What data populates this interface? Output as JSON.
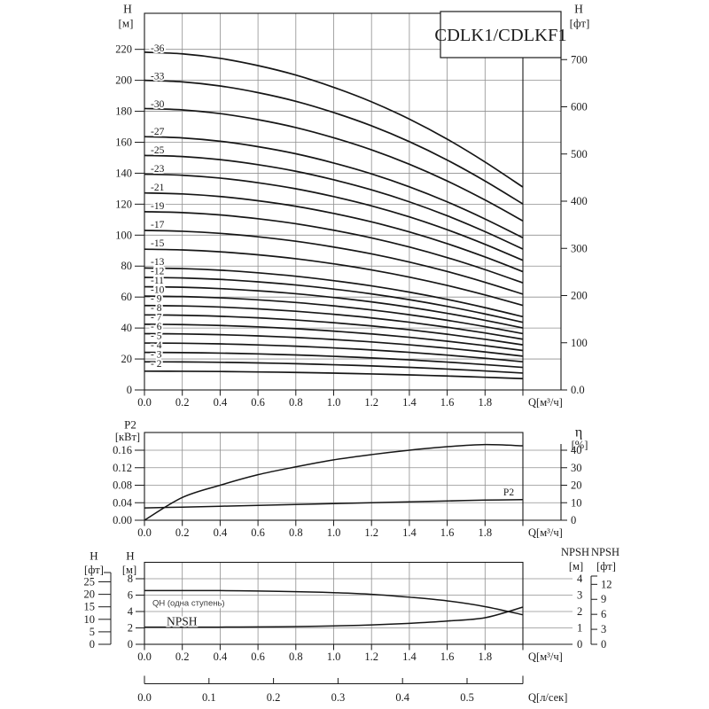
{
  "figure": {
    "title": "CDLK1/CDLKF1",
    "x_tick_labels": [
      "0.0",
      "0.2",
      "0.4",
      "0.6",
      "0.8",
      "1.0",
      "1.2",
      "1.4",
      "1.6",
      "1.8"
    ]
  },
  "chart_data": [
    {
      "id": "head-chart",
      "type": "line",
      "title": "CDLK1/CDLKF1",
      "xlabel": "Q[м³/ч]",
      "x_range": [
        0,
        2.0
      ],
      "x_tick_labels": [
        "0.0",
        "0.2",
        "0.4",
        "0.6",
        "0.8",
        "1.0",
        "1.2",
        "1.4",
        "1.6",
        "1.8"
      ],
      "y_left": {
        "name": "H",
        "unit": "[м]",
        "ticks": [
          0,
          20,
          40,
          60,
          80,
          100,
          120,
          140,
          160,
          180,
          200,
          220
        ],
        "range": [
          0,
          243
        ]
      },
      "y_right": {
        "name": "H",
        "unit": "[фт]",
        "tick_labels": [
          "0.0",
          "100",
          "200",
          "300",
          "400",
          "500",
          "600",
          "700"
        ],
        "tick_values": [
          0,
          100,
          200,
          300,
          400,
          500,
          600,
          700
        ]
      },
      "grid": true,
      "q": [
        0,
        0.2,
        0.4,
        0.6,
        0.8,
        1.0,
        1.2,
        1.4,
        1.6,
        1.8,
        2.0
      ],
      "single_stage_head_m": [
        6.06,
        6.03,
        5.95,
        5.82,
        5.65,
        5.43,
        5.17,
        4.86,
        4.5,
        4.09,
        3.64
      ],
      "series": [
        {
          "label": "-36",
          "stages": 36
        },
        {
          "label": "-33",
          "stages": 33
        },
        {
          "label": "-30",
          "stages": 30
        },
        {
          "label": "-27",
          "stages": 27
        },
        {
          "label": "-25",
          "stages": 25
        },
        {
          "label": "-23",
          "stages": 23
        },
        {
          "label": "-21",
          "stages": 21
        },
        {
          "label": "-19",
          "stages": 19
        },
        {
          "label": "-17",
          "stages": 17
        },
        {
          "label": "-15",
          "stages": 15
        },
        {
          "label": "-13",
          "stages": 13
        },
        {
          "label": "-12",
          "stages": 12
        },
        {
          "label": "-11",
          "stages": 11
        },
        {
          "label": "-10",
          "stages": 10
        },
        {
          "label": "- 9",
          "stages": 9
        },
        {
          "label": "- 8",
          "stages": 8
        },
        {
          "label": "- 7",
          "stages": 7
        },
        {
          "label": "- 6",
          "stages": 6
        },
        {
          "label": "- 5",
          "stages": 5
        },
        {
          "label": "- 4",
          "stages": 4
        },
        {
          "label": "- 3",
          "stages": 3
        },
        {
          "label": "- 2",
          "stages": 2
        }
      ]
    },
    {
      "id": "power-efficiency-chart",
      "type": "line",
      "xlabel": "Q[м³/ч]",
      "x_tick_labels": [
        "0.0",
        "0.2",
        "0.4",
        "0.6",
        "0.8",
        "1.0",
        "1.2",
        "1.4",
        "1.6",
        "1.8"
      ],
      "y_left": {
        "name": "P2",
        "unit": "[кВт]",
        "tick_labels": [
          "0.00",
          "0.04",
          "0.08",
          "0.12",
          "0.16"
        ],
        "range": [
          0,
          0.2
        ]
      },
      "y_right": {
        "name": "η",
        "unit": "[%]",
        "ticks": [
          0,
          10,
          20,
          30,
          40
        ]
      },
      "q": [
        0,
        0.2,
        0.4,
        0.6,
        0.8,
        1.0,
        1.2,
        1.4,
        1.6,
        1.8,
        2.0
      ],
      "series": [
        {
          "name": "eta",
          "label": "",
          "unit": "%",
          "values": [
            0,
            13,
            20,
            26,
            30.5,
            34.5,
            37.5,
            40,
            42,
            43.2,
            42.5
          ]
        },
        {
          "name": "P2",
          "label": "P2",
          "unit": "кВт",
          "values": [
            0.028,
            0.03,
            0.032,
            0.034,
            0.036,
            0.038,
            0.04,
            0.042,
            0.044,
            0.046,
            0.047
          ]
        }
      ]
    },
    {
      "id": "qh-npsh-chart",
      "type": "line",
      "xlabel": "Q[м³/ч]",
      "x_tick_labels": [
        "0.0",
        "0.2",
        "0.4",
        "0.6",
        "0.8",
        "1.0",
        "1.2",
        "1.4",
        "1.6",
        "1.8"
      ],
      "y_left": {
        "name": "H",
        "unit": "[м]",
        "ticks": [
          0,
          2,
          4,
          6,
          8
        ],
        "range": [
          0,
          10
        ]
      },
      "y_outer_left": {
        "name": "H",
        "unit": "[фт]",
        "ticks": [
          0,
          5,
          10,
          15,
          20,
          25
        ]
      },
      "y_right": {
        "name": "NPSH",
        "unit": "[м]",
        "ticks": [
          0,
          1,
          2,
          3,
          4
        ]
      },
      "y_outer_right": {
        "name": "NPSH",
        "unit": "[фт]",
        "ticks": [
          0,
          3,
          6,
          9,
          12
        ]
      },
      "q": [
        0,
        0.2,
        0.4,
        0.6,
        0.8,
        1.0,
        1.2,
        1.4,
        1.6,
        1.8,
        2.0
      ],
      "series": [
        {
          "name": "QH",
          "label": "QH (одна ступень)",
          "unit": "м",
          "values": [
            6.55,
            6.55,
            6.55,
            6.5,
            6.42,
            6.3,
            6.1,
            5.75,
            5.3,
            4.6,
            3.6
          ]
        },
        {
          "name": "NPSH",
          "label": "NPSH",
          "unit": "м",
          "values": [
            1.05,
            1.05,
            1.05,
            1.06,
            1.08,
            1.12,
            1.18,
            1.28,
            1.42,
            1.62,
            2.27
          ]
        }
      ]
    },
    {
      "id": "lps-axis",
      "type": "axis",
      "xlabel": "Q[л/сек]",
      "tick_labels": [
        "0.0",
        "0.1",
        "0.2",
        "0.3",
        "0.4",
        "0.5"
      ]
    }
  ]
}
